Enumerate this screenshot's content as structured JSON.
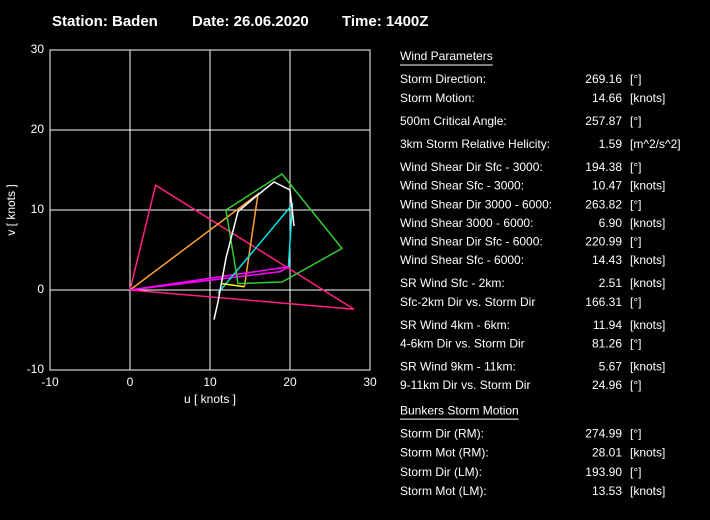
{
  "chart_data": {
    "type": "hodograph",
    "title": {
      "station": "Station: Baden",
      "date": "Date: 26.06.2020",
      "time": "Time: 1400Z"
    },
    "x_label": "u  [ knots ]",
    "y_label": "v  [ knots ]",
    "xlim": [
      -10,
      30
    ],
    "ylim": [
      -10,
      30
    ],
    "xticks": [
      -10,
      0,
      10,
      20,
      30
    ],
    "yticks": [
      -10,
      0,
      10,
      20,
      30
    ],
    "grid": true,
    "series": [
      {
        "color": "#ff2080",
        "x": [
          0,
          3.2,
          28,
          0
        ],
        "y": [
          0,
          13.1,
          -2.4,
          0
        ]
      },
      {
        "color": "#ffa030",
        "x": [
          0,
          16,
          14.3
        ],
        "y": [
          0,
          12,
          0.4
        ]
      },
      {
        "color": "#ff00ff",
        "x": [
          0,
          19.8,
          18.8,
          0
        ],
        "y": [
          0,
          2.9,
          2.3,
          0
        ]
      },
      {
        "color": "#00e5e5",
        "x": [
          11,
          20.3,
          19.8
        ],
        "y": [
          -0.4,
          10.7,
          2.9
        ]
      },
      {
        "color": "#33cc33",
        "x": [
          12,
          19,
          26.5,
          19,
          13.5,
          12
        ],
        "y": [
          10,
          14.5,
          5.2,
          1,
          0.8,
          10
        ]
      },
      {
        "color": "#ffff00",
        "x": [
          11.5,
          14.3
        ],
        "y": [
          0.8,
          0.4
        ]
      },
      {
        "color": "#ffffff",
        "x": [
          10.5,
          11,
          12,
          13.5,
          15.5,
          18,
          20,
          20.5
        ],
        "y": [
          -3.7,
          -1.5,
          4,
          9.8,
          11.5,
          13.5,
          12.5,
          8
        ]
      }
    ]
  },
  "panel": {
    "sections": [
      {
        "heading": "Wind Parameters",
        "groups": [
          {
            "color": "#ff0000",
            "rows": [
              {
                "label": "Storm Direction:",
                "value": "269.16",
                "unit": "[°]"
              },
              {
                "label": "Storm Motion:",
                "value": "14.66",
                "unit": "[knots]"
              }
            ]
          },
          {
            "color": "#e0a0ff",
            "rows": [
              {
                "label": "500m Critical Angle:",
                "value": "257.87",
                "unit": "[°]"
              }
            ]
          },
          {
            "color": "#33cc33",
            "rows": [
              {
                "label": "3km Storm Relative Helicity:",
                "value": "1.59",
                "unit": "[m^2/s^2]"
              }
            ]
          },
          {
            "color": "#00e5e5",
            "rows": [
              {
                "label": "Wind Shear Dir Sfc - 3000:",
                "value": "194.38",
                "unit": "[°]"
              },
              {
                "label": "Wind Shear Sfc - 3000:",
                "value": "10.47",
                "unit": "[knots]"
              },
              {
                "label": "Wind Shear Dir 3000 - 6000:",
                "value": "263.82",
                "unit": "[°]"
              },
              {
                "label": "Wind Shear 3000 - 6000:",
                "value": "6.90",
                "unit": "[knots]"
              },
              {
                "label": "Wind Shear Dir Sfc - 6000:",
                "value": "220.99",
                "unit": "[°]"
              },
              {
                "label": "Wind Shear Sfc - 6000:",
                "value": "14.43",
                "unit": "[knots]"
              }
            ]
          },
          {
            "color": "#ffff00",
            "rows": [
              {
                "label": "SR Wind Sfc - 2km:",
                "value": "2.51",
                "unit": "[knots]"
              },
              {
                "label": "Sfc-2km Dir vs. Storm Dir",
                "value": "166.31",
                "unit": "[°]"
              }
            ]
          },
          {
            "color": "#ffa030",
            "rows": [
              {
                "label": "SR Wind 4km - 6km:",
                "value": "11.94",
                "unit": "[knots]"
              },
              {
                "label": "4-6km Dir vs. Storm Dir",
                "value": "81.26",
                "unit": "[°]"
              }
            ]
          },
          {
            "color": "#ff00ff",
            "rows": [
              {
                "label": "SR Wind 9km - 11km:",
                "value": "5.67",
                "unit": "[knots]"
              },
              {
                "label": "9-11km Dir vs. Storm Dir",
                "value": "24.96",
                "unit": "[°]"
              }
            ]
          }
        ]
      },
      {
        "heading": "Bunkers Storm Motion",
        "groups": [
          {
            "color": "#ff2080",
            "rows": [
              {
                "label": "Storm Dir (RM):",
                "value": "274.99",
                "unit": "[°]"
              },
              {
                "label": "Storm Mot (RM):",
                "value": "28.01",
                "unit": "[knots]"
              },
              {
                "label": "Storm Dir (LM):",
                "value": "193.90",
                "unit": "[°]"
              },
              {
                "label": "Storm Mot (LM):",
                "value": "13.53",
                "unit": "[knots]"
              }
            ]
          }
        ]
      }
    ]
  }
}
